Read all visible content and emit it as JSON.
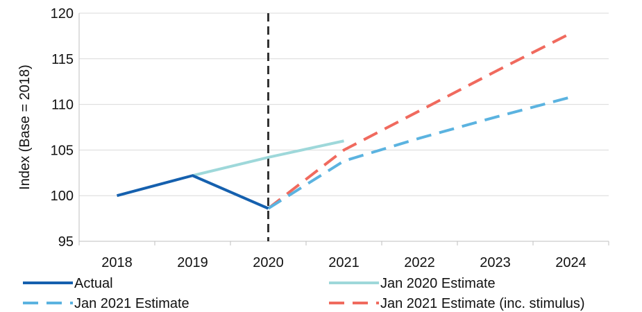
{
  "chart_data": {
    "type": "line",
    "title": "",
    "xlabel": "",
    "ylabel": "Index (Base = 2018)",
    "x": [
      "2018",
      "2019",
      "2020",
      "2021",
      "2022",
      "2023",
      "2024"
    ],
    "ylim": [
      95,
      120
    ],
    "yticks": [
      "95",
      "100",
      "105",
      "110",
      "115",
      "120"
    ],
    "grid": "horizontal",
    "legend_position": "bottom",
    "vertical_marker_x": "2020",
    "series": [
      {
        "name": "Actual",
        "color": "#1560AE",
        "style": "solid",
        "points": [
          {
            "x": "2018",
            "y": 100
          },
          {
            "x": "2019",
            "y": 102.2
          },
          {
            "x": "2020",
            "y": 98.6
          }
        ]
      },
      {
        "name": "Jan 2020 Estimate",
        "color": "#9ED8DA",
        "style": "solid",
        "points": [
          {
            "x": "2019",
            "y": 102.2
          },
          {
            "x": "2020",
            "y": 104.2
          },
          {
            "x": "2021",
            "y": 106
          }
        ]
      },
      {
        "name": "Jan 2021 Estimate",
        "color": "#5BB3E0",
        "style": "dashed",
        "points": [
          {
            "x": "2020",
            "y": 98.6
          },
          {
            "x": "2021",
            "y": 103.8
          },
          {
            "x": "2022",
            "y": 106.3
          },
          {
            "x": "2023",
            "y": 108.6
          },
          {
            "x": "2024",
            "y": 110.8
          }
        ]
      },
      {
        "name": "Jan 2021 Estimate (inc. stimulus)",
        "color": "#F06A5E",
        "style": "dashed",
        "points": [
          {
            "x": "2020",
            "y": 98.6
          },
          {
            "x": "2021",
            "y": 105
          },
          {
            "x": "2022",
            "y": 109.3
          },
          {
            "x": "2023",
            "y": 113.6
          },
          {
            "x": "2024",
            "y": 117.8
          }
        ]
      }
    ]
  }
}
